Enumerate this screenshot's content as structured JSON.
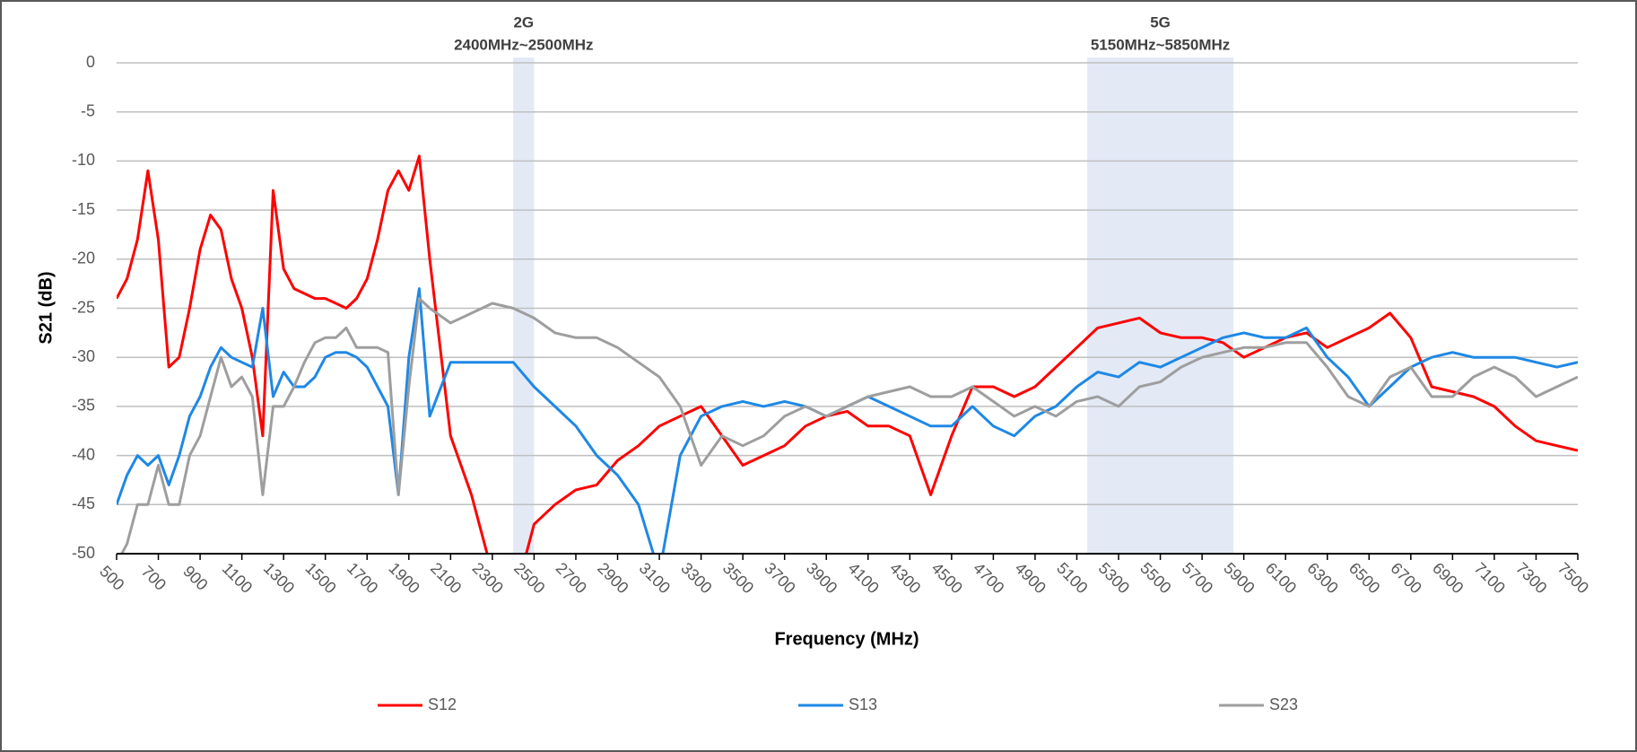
{
  "chart_data": {
    "type": "line",
    "xlabel": "Frequency (MHz)",
    "ylabel": "S21 (dB)",
    "bands": [
      {
        "label": "2G",
        "range_label": "2400MHz~2500MHz",
        "xlim": [
          2400,
          2500
        ],
        "color": "#e3eaf6"
      },
      {
        "label": "5G",
        "range_label": "5150MHz~5850MHz",
        "xlim": [
          5150,
          5850
        ],
        "color": "#e3eaf6"
      }
    ],
    "x": [
      500,
      550,
      600,
      650,
      700,
      750,
      800,
      850,
      900,
      950,
      1000,
      1050,
      1100,
      1150,
      1200,
      1250,
      1300,
      1350,
      1400,
      1450,
      1500,
      1550,
      1600,
      1650,
      1700,
      1750,
      1800,
      1850,
      1900,
      1950,
      2000,
      2100,
      2200,
      2300,
      2400,
      2500,
      2600,
      2700,
      2800,
      2900,
      3000,
      3100,
      3200,
      3300,
      3400,
      3500,
      3600,
      3700,
      3800,
      3900,
      4000,
      4100,
      4200,
      4300,
      4400,
      4500,
      4600,
      4700,
      4800,
      4900,
      5000,
      5100,
      5200,
      5300,
      5400,
      5500,
      5600,
      5700,
      5800,
      5900,
      6000,
      6100,
      6200,
      6300,
      6400,
      6500,
      6600,
      6700,
      6800,
      6900,
      7000,
      7100,
      7200,
      7300,
      7400,
      7500
    ],
    "series": [
      {
        "name": "S12",
        "color": "#ff0000",
        "values": [
          -24,
          -22,
          -18,
          -11,
          -18,
          -31,
          -30,
          -25,
          -19,
          -15.5,
          -17,
          -22,
          -25,
          -30,
          -38,
          -13,
          -21,
          -23,
          -23.5,
          -24,
          -24,
          -24.5,
          -25,
          -24,
          -22,
          -18,
          -13,
          -11,
          -13,
          -9.5,
          -20,
          -38,
          -44,
          -52,
          -55,
          -47,
          -45,
          -43.5,
          -43,
          -40.5,
          -39,
          -37,
          -36,
          -35,
          -38,
          -41,
          -40,
          -39,
          -37,
          -36,
          -35.5,
          -37,
          -37,
          -38,
          -44,
          -38,
          -33,
          -33,
          -34,
          -33,
          -31,
          -29,
          -27,
          -26.5,
          -26,
          -27.5,
          -28,
          -28,
          -28.5,
          -30,
          -29,
          -28,
          -27.5,
          -29,
          -28,
          -27,
          -25.5,
          -28,
          -33,
          -33.5,
          -34,
          -35,
          -37,
          -38.5,
          -39,
          -39.5
        ]
      },
      {
        "name": "S13",
        "color": "#1e88e5",
        "values": [
          -45,
          -42,
          -40,
          -41,
          -40,
          -43,
          -40,
          -36,
          -34,
          -31,
          -29,
          -30,
          -30.5,
          -31,
          -25,
          -34,
          -31.5,
          -33,
          -33,
          -32,
          -30,
          -29.5,
          -29.5,
          -30,
          -31,
          -33,
          -35,
          -44,
          -30,
          -23,
          -36,
          -30.5,
          -30.5,
          -30.5,
          -30.5,
          -33,
          -35,
          -37,
          -40,
          -42,
          -45,
          -52,
          -40,
          -36,
          -35,
          -34.5,
          -35,
          -34.5,
          -35,
          -36,
          -35,
          -34,
          -35,
          -36,
          -37,
          -37,
          -35,
          -37,
          -38,
          -36,
          -35,
          -33,
          -31.5,
          -32,
          -30.5,
          -31,
          -30,
          -29,
          -28,
          -27.5,
          -28,
          -28,
          -27,
          -30,
          -32,
          -35,
          -33,
          -31,
          -30,
          -29.5,
          -30,
          -30,
          -30,
          -30.5,
          -31,
          -30.5
        ]
      },
      {
        "name": "S23",
        "color": "#9e9e9e",
        "values": [
          -51,
          -49,
          -45,
          -45,
          -41,
          -45,
          -45,
          -40,
          -38,
          -34,
          -30,
          -33,
          -32,
          -34,
          -44,
          -35,
          -35,
          -33,
          -30.5,
          -28.5,
          -28,
          -28,
          -27,
          -29,
          -29,
          -29,
          -29.5,
          -44,
          -33,
          -24,
          -25,
          -26.5,
          -25.5,
          -24.5,
          -25,
          -26,
          -27.5,
          -28,
          -28,
          -29,
          -30.5,
          -32,
          -35,
          -41,
          -38,
          -39,
          -38,
          -36,
          -35,
          -36,
          -35,
          -34,
          -33.5,
          -33,
          -34,
          -34,
          -33,
          -34.5,
          -36,
          -35,
          -36,
          -34.5,
          -34,
          -35,
          -33,
          -32.5,
          -31,
          -30,
          -29.5,
          -29,
          -29,
          -28.5,
          -28.5,
          -31,
          -34,
          -35,
          -32,
          -31,
          -34,
          -34,
          -32,
          -31,
          -32,
          -34,
          -33,
          -32
        ]
      }
    ],
    "xlim": [
      500,
      7500
    ],
    "xticks": [
      500,
      700,
      900,
      1100,
      1300,
      1500,
      1700,
      1900,
      2100,
      2300,
      2500,
      2700,
      2900,
      3100,
      3300,
      3500,
      3700,
      3900,
      4100,
      4300,
      4500,
      4700,
      4900,
      5100,
      5300,
      5500,
      5700,
      5900,
      6100,
      6300,
      6500,
      6700,
      6900,
      7100,
      7300,
      7500
    ],
    "ylim": [
      -50,
      0
    ],
    "yticks": [
      0,
      -5,
      -10,
      -15,
      -20,
      -25,
      -30,
      -35,
      -40,
      -45,
      -50
    ],
    "grid": true,
    "legend": "bottom"
  }
}
